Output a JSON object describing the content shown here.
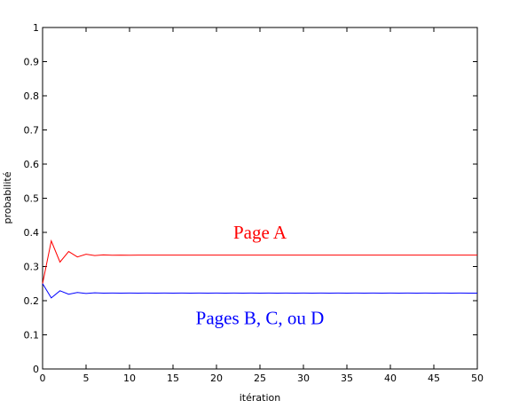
{
  "chart_data": {
    "type": "line",
    "title": "",
    "xlabel": "itération",
    "ylabel": "probabilité",
    "xlim": [
      0,
      50
    ],
    "ylim": [
      0,
      1
    ],
    "xticks": [
      0,
      5,
      10,
      15,
      20,
      25,
      30,
      35,
      40,
      45,
      50
    ],
    "yticks": [
      0,
      0.1,
      0.2,
      0.3,
      0.4,
      0.5,
      0.6,
      0.7,
      0.8,
      0.9,
      1
    ],
    "xtick_labels": [
      "0",
      "5",
      "10",
      "15",
      "20",
      "25",
      "30",
      "35",
      "40",
      "45",
      "50"
    ],
    "ytick_labels": [
      "0",
      "0.1",
      "0.2",
      "0.3",
      "0.4",
      "0.5",
      "0.6",
      "0.7",
      "0.8",
      "0.9",
      "1"
    ],
    "grid": false,
    "x": [
      0,
      1,
      2,
      3,
      4,
      5,
      6,
      7,
      8,
      9,
      10,
      11,
      12,
      13,
      14,
      15,
      16,
      17,
      18,
      19,
      20,
      21,
      22,
      23,
      24,
      25,
      26,
      27,
      28,
      29,
      30,
      31,
      32,
      33,
      34,
      35,
      36,
      37,
      38,
      39,
      40,
      41,
      42,
      43,
      44,
      45,
      46,
      47,
      48,
      49,
      50
    ],
    "series": [
      {
        "color": "#ff0000",
        "values": [
          0.25,
          0.375,
          0.313,
          0.344,
          0.328,
          0.336,
          0.332,
          0.334,
          0.333,
          0.3335,
          0.3332,
          0.3334,
          0.3333,
          0.3334,
          0.3333,
          0.3334,
          0.3333,
          0.3334,
          0.3333,
          0.3334,
          0.3333,
          0.3334,
          0.3333,
          0.3334,
          0.3333,
          0.3334,
          0.3333,
          0.3334,
          0.3333,
          0.3334,
          0.3333,
          0.3334,
          0.3333,
          0.3334,
          0.3333,
          0.3334,
          0.3333,
          0.3334,
          0.3333,
          0.3334,
          0.3333,
          0.3334,
          0.3333,
          0.3334,
          0.3333,
          0.3334,
          0.3333,
          0.3334,
          0.3333,
          0.3334,
          0.3333
        ]
      },
      {
        "color": "#0000ff",
        "values": [
          0.25,
          0.208,
          0.229,
          0.219,
          0.224,
          0.221,
          0.223,
          0.222,
          0.2225,
          0.2221,
          0.2223,
          0.2222,
          0.2223,
          0.2222,
          0.2223,
          0.2222,
          0.2223,
          0.2222,
          0.2223,
          0.2222,
          0.2223,
          0.2222,
          0.2223,
          0.2222,
          0.2223,
          0.2222,
          0.2223,
          0.2222,
          0.2223,
          0.2222,
          0.2223,
          0.2222,
          0.2223,
          0.2222,
          0.2223,
          0.2222,
          0.2223,
          0.2222,
          0.2223,
          0.2222,
          0.2223,
          0.2222,
          0.2223,
          0.2222,
          0.2223,
          0.2222,
          0.2223,
          0.2222,
          0.2223,
          0.2222,
          0.2222
        ]
      }
    ],
    "annotations": [
      {
        "text": "Page A",
        "color": "#ff0000",
        "x": 25,
        "y": 0.4
      },
      {
        "text": "Pages B, C, ou D",
        "color": "#0000ff",
        "x": 25,
        "y": 0.15
      }
    ]
  }
}
